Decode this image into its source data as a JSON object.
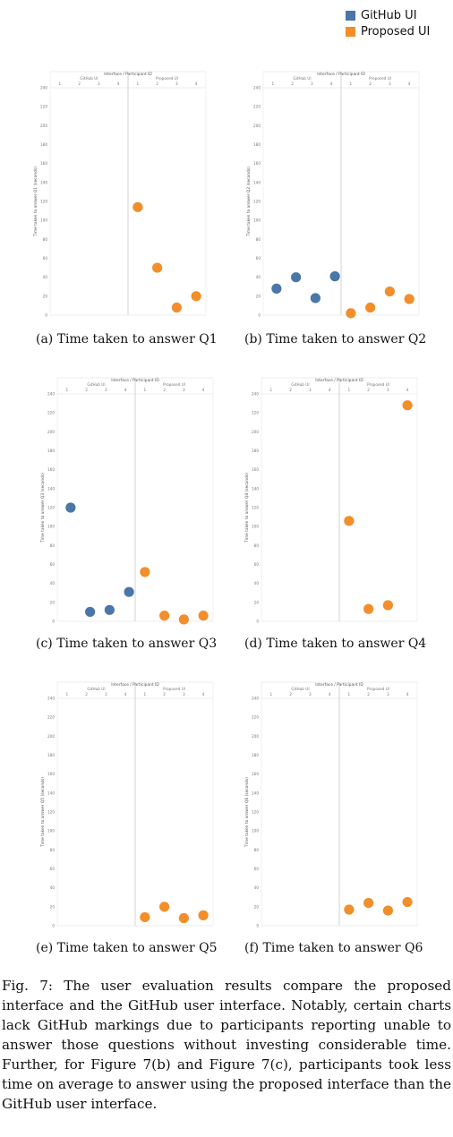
{
  "legend": [
    {
      "label": "GitHub UI",
      "color": "#4a76a8"
    },
    {
      "label": "Proposed UI",
      "color": "#f28e2b"
    }
  ],
  "chart_data": [
    {
      "type": "scatter",
      "caption": "(a) Time taken to answer Q1",
      "header": "Interface / Participant ID",
      "groups": [
        "GitHub UI",
        "Proposed UI"
      ],
      "participant_ids": [
        "1",
        "2",
        "3",
        "4"
      ],
      "ylabel": "Time taken to answer Q1 (seconds)",
      "yticks": [
        0,
        20,
        40,
        60,
        80,
        100,
        120,
        140,
        160,
        180,
        200,
        220,
        240
      ],
      "ylim": [
        0,
        240
      ],
      "series": [
        {
          "name": "GitHub UI",
          "values": [
            null,
            null,
            null,
            null
          ]
        },
        {
          "name": "Proposed UI",
          "values": [
            114,
            50,
            8,
            20
          ]
        }
      ]
    },
    {
      "type": "scatter",
      "caption": "(b) Time taken to answer Q2",
      "header": "Interface / Participant ID",
      "groups": [
        "GitHub UI",
        "Proposed UI"
      ],
      "participant_ids": [
        "1",
        "2",
        "3",
        "4"
      ],
      "ylabel": "Time taken to answer Q2 (seconds)",
      "yticks": [
        0,
        20,
        40,
        60,
        80,
        100,
        120,
        140,
        160,
        180,
        200,
        220,
        240
      ],
      "ylim": [
        0,
        240
      ],
      "series": [
        {
          "name": "GitHub UI",
          "values": [
            28,
            40,
            18,
            41
          ]
        },
        {
          "name": "Proposed UI",
          "values": [
            2,
            8,
            25,
            17
          ]
        }
      ]
    },
    {
      "type": "scatter",
      "caption": "(c) Time taken to answer Q3",
      "header": "Interface / Participant ID",
      "groups": [
        "GitHub UI",
        "Proposed UI"
      ],
      "participant_ids": [
        "1",
        "2",
        "3",
        "4"
      ],
      "ylabel": "Time taken to answer Q3 (seconds)",
      "yticks": [
        0,
        20,
        40,
        60,
        80,
        100,
        120,
        140,
        160,
        180,
        200,
        220,
        240
      ],
      "ylim": [
        0,
        240
      ],
      "series": [
        {
          "name": "GitHub UI",
          "values": [
            120,
            10,
            12,
            31
          ]
        },
        {
          "name": "Proposed UI",
          "values": [
            52,
            6,
            2,
            6
          ]
        }
      ]
    },
    {
      "type": "scatter",
      "caption": "(d) Time taken to answer Q4",
      "header": "Interface / Participant ID",
      "groups": [
        "GitHub UI",
        "Proposed UI"
      ],
      "participant_ids": [
        "1",
        "2",
        "3",
        "4"
      ],
      "ylabel": "Time taken to answer Q4 (seconds)",
      "yticks": [
        0,
        20,
        40,
        60,
        80,
        100,
        120,
        140,
        160,
        180,
        200,
        220,
        240
      ],
      "ylim": [
        0,
        240
      ],
      "series": [
        {
          "name": "GitHub UI",
          "values": [
            null,
            null,
            null,
            null
          ]
        },
        {
          "name": "Proposed UI",
          "values": [
            106,
            13,
            17,
            228
          ]
        }
      ]
    },
    {
      "type": "scatter",
      "caption": "(e) Time taken to answer Q5",
      "header": "Interface / Participant ID",
      "groups": [
        "GitHub UI",
        "Proposed UI"
      ],
      "participant_ids": [
        "1",
        "2",
        "3",
        "4"
      ],
      "ylabel": "Time taken to answer Q5 (seconds)",
      "yticks": [
        0,
        20,
        40,
        60,
        80,
        100,
        120,
        140,
        160,
        180,
        200,
        220,
        240
      ],
      "ylim": [
        0,
        240
      ],
      "series": [
        {
          "name": "GitHub UI",
          "values": [
            null,
            null,
            null,
            null
          ]
        },
        {
          "name": "Proposed UI",
          "values": [
            9,
            20,
            8,
            11
          ]
        }
      ]
    },
    {
      "type": "scatter",
      "caption": "(f) Time taken to answer Q6",
      "header": "Interface / Participant ID",
      "groups": [
        "GitHub UI",
        "Proposed UI"
      ],
      "participant_ids": [
        "1",
        "2",
        "3",
        "4"
      ],
      "ylabel": "Time taken to answer Q6 (seconds)",
      "yticks": [
        0,
        20,
        40,
        60,
        80,
        100,
        120,
        140,
        160,
        180,
        200,
        220,
        240
      ],
      "ylim": [
        0,
        240
      ],
      "series": [
        {
          "name": "GitHub UI",
          "values": [
            null,
            null,
            null,
            null
          ]
        },
        {
          "name": "Proposed UI",
          "values": [
            17,
            24,
            16,
            25
          ]
        }
      ]
    }
  ],
  "figure_caption": "Fig. 7: The user evaluation results compare the proposed interface and the GitHub user interface. Notably, certain charts lack GitHub markings due to participants reporting unable to answer those questions without investing considerable time. Further, for Figure 7(b) and Figure 7(c), participants took less time on average to answer using the proposed interface than the GitHub user interface."
}
